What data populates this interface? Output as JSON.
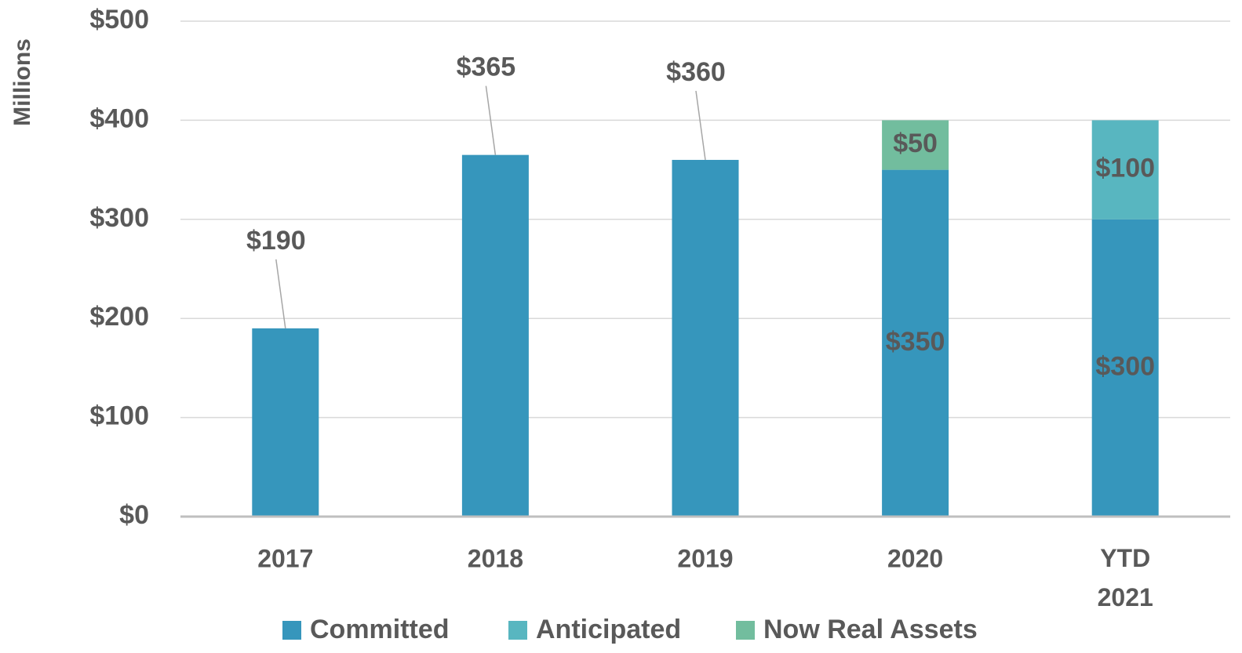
{
  "chart_data": {
    "type": "bar",
    "stacked": true,
    "y_axis_label": "Millions",
    "categories": [
      "2017",
      "2018",
      "2019",
      "2020",
      "YTD 2021"
    ],
    "series": [
      {
        "name": "Committed",
        "color": "#3696bc",
        "values": [
          190,
          365,
          360,
          350,
          300
        ],
        "value_labels": [
          "$190",
          "$365",
          "$360",
          "$350",
          "$300"
        ]
      },
      {
        "name": "Anticipated",
        "color": "#58b6c0",
        "values": [
          null,
          null,
          null,
          null,
          100
        ],
        "value_labels": [
          null,
          null,
          null,
          null,
          "$100"
        ]
      },
      {
        "name": "Now Real Assets",
        "color": "#72bd9e",
        "values": [
          null,
          null,
          null,
          50,
          null
        ],
        "value_labels": [
          null,
          null,
          null,
          "$50",
          null
        ]
      }
    ],
    "ylim": [
      0,
      500
    ],
    "yticks": [
      {
        "value": 0,
        "label": "$0"
      },
      {
        "value": 100,
        "label": "$100"
      },
      {
        "value": 200,
        "label": "$200"
      },
      {
        "value": 300,
        "label": "$300"
      },
      {
        "value": 400,
        "label": "$400"
      },
      {
        "value": 500,
        "label": "$500"
      }
    ],
    "grid": true,
    "legend": "bottom"
  }
}
